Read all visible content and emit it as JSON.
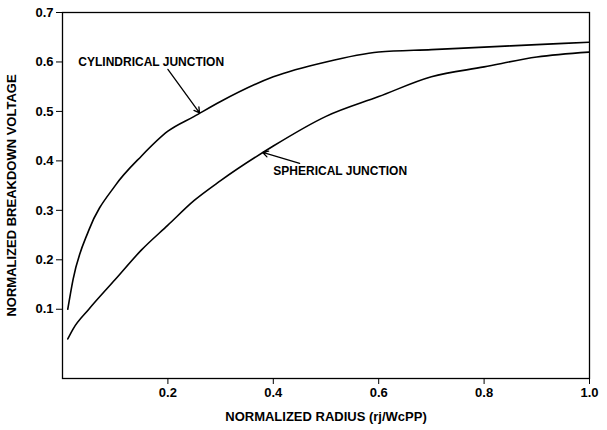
{
  "chart_data": {
    "type": "line",
    "x_label": "NORMALIZED RADIUS (rj/WcPP)",
    "y_label": "NORMALIZED BREAKDOWN VOLTAGE",
    "x": [
      0.01,
      0.02,
      0.05,
      0.1,
      0.15,
      0.2,
      0.25,
      0.3,
      0.4,
      0.5,
      0.6,
      0.7,
      0.8,
      0.9,
      1.0
    ],
    "series": [
      {
        "name": "CYLINDRICAL JUNCTION",
        "color": "#000000",
        "values": [
          0.1,
          0.16,
          0.26,
          0.35,
          0.41,
          0.46,
          0.49,
          0.52,
          0.57,
          0.6,
          0.62,
          0.625,
          0.63,
          0.635,
          0.64
        ]
      },
      {
        "name": "SPHERICAL JUNCTION",
        "color": "#000000",
        "values": [
          0.04,
          0.06,
          0.1,
          0.16,
          0.22,
          0.27,
          0.32,
          0.36,
          0.43,
          0.49,
          0.53,
          0.57,
          0.59,
          0.61,
          0.62
        ]
      }
    ],
    "annotations": [
      {
        "text": "CYLINDRICAL JUNCTION",
        "x": 0.03,
        "y": 0.6,
        "arrow_x": 0.26,
        "arrow_y": 0.497
      },
      {
        "text": "SPHERICAL JUNCTION",
        "x": 0.4,
        "y": 0.38,
        "arrow_x": 0.38,
        "arrow_y": 0.417
      }
    ],
    "xlim": [
      0,
      1
    ],
    "xticks": [
      0.2,
      0.4,
      0.6,
      0.8,
      {
        "value": 1,
        "label": "1.0"
      }
    ],
    "ylim": [
      -0.04,
      0.7
    ],
    "yticks": [
      0.1,
      0.2,
      0.3,
      0.4,
      0.5,
      0.6,
      0.7
    ],
    "grid": false
  }
}
